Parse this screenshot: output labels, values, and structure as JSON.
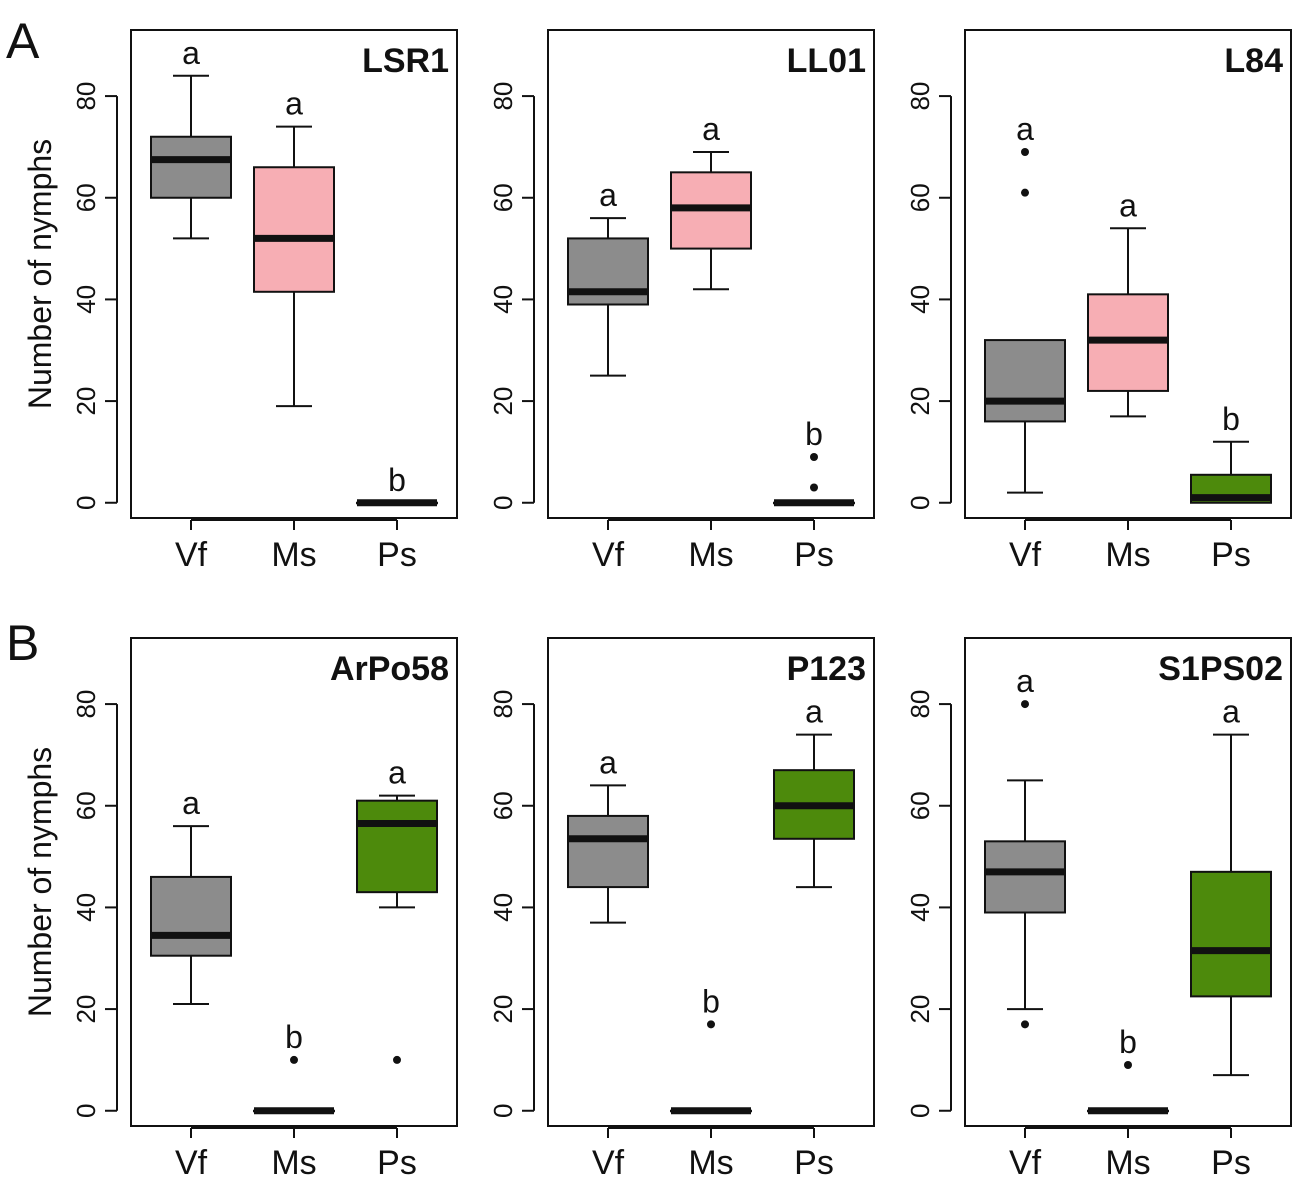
{
  "figure": {
    "panel_labels": [
      "A",
      "B"
    ],
    "y_axis_label": "Number of nymphs"
  },
  "colors": {
    "Vf": "#8c8c8c",
    "Ms": "#f7aeb4",
    "Ps": "#4d8a0c",
    "median": "#111111"
  },
  "chart_data": [
    {
      "type": "boxplot",
      "title": "LSR1",
      "ylabel": "Number of nymphs",
      "ylim": [
        -3,
        93
      ],
      "yticks": [
        "0",
        "20",
        "40",
        "60",
        "80"
      ],
      "categories": [
        "Vf",
        "Ms",
        "Ps"
      ],
      "boxes": [
        {
          "group": "Vf",
          "min": 52,
          "q1": 60,
          "median": 67.5,
          "q3": 72,
          "max": 84,
          "outliers": [],
          "letter": "a"
        },
        {
          "group": "Ms",
          "min": 19,
          "q1": 41.5,
          "median": 52,
          "q3": 66,
          "max": 74,
          "outliers": [],
          "letter": "a"
        },
        {
          "group": "Ps",
          "min": 0,
          "q1": 0,
          "median": 0,
          "q3": 0,
          "max": 0,
          "outliers": [],
          "letter": "b"
        }
      ]
    },
    {
      "type": "boxplot",
      "title": "LL01",
      "ylabel": "",
      "ylim": [
        -3,
        93
      ],
      "yticks": [
        "0",
        "20",
        "40",
        "60",
        "80"
      ],
      "categories": [
        "Vf",
        "Ms",
        "Ps"
      ],
      "boxes": [
        {
          "group": "Vf",
          "min": 25,
          "q1": 39,
          "median": 41.5,
          "q3": 52,
          "max": 56,
          "outliers": [],
          "letter": "a"
        },
        {
          "group": "Ms",
          "min": 42,
          "q1": 50,
          "median": 58,
          "q3": 65,
          "max": 69,
          "outliers": [],
          "letter": "a"
        },
        {
          "group": "Ps",
          "min": 0,
          "q1": 0,
          "median": 0,
          "q3": 0,
          "max": 0,
          "outliers": [
            3,
            9
          ],
          "letter": "b"
        }
      ]
    },
    {
      "type": "boxplot",
      "title": "L84",
      "ylabel": "",
      "ylim": [
        -3,
        93
      ],
      "yticks": [
        "0",
        "20",
        "40",
        "60",
        "80"
      ],
      "categories": [
        "Vf",
        "Ms",
        "Ps"
      ],
      "boxes": [
        {
          "group": "Vf",
          "min": 2,
          "q1": 16,
          "median": 20,
          "q3": 32,
          "max": 32,
          "outliers": [
            61,
            69
          ],
          "letter": "a"
        },
        {
          "group": "Ms",
          "min": 17,
          "q1": 22,
          "median": 32,
          "q3": 41,
          "max": 54,
          "outliers": [],
          "letter": "a"
        },
        {
          "group": "Ps",
          "min": 0,
          "q1": 0,
          "median": 1,
          "q3": 5.5,
          "max": 12,
          "outliers": [],
          "letter": "b"
        }
      ]
    },
    {
      "type": "boxplot",
      "title": "ArPo58",
      "ylabel": "Number of nymphs",
      "ylim": [
        -3,
        93
      ],
      "yticks": [
        "0",
        "20",
        "40",
        "60",
        "80"
      ],
      "categories": [
        "Vf",
        "Ms",
        "Ps"
      ],
      "boxes": [
        {
          "group": "Vf",
          "min": 21,
          "q1": 30.5,
          "median": 34.5,
          "q3": 46,
          "max": 56,
          "outliers": [],
          "letter": "a"
        },
        {
          "group": "Ms",
          "min": 0,
          "q1": 0,
          "median": 0,
          "q3": 0,
          "max": 0,
          "outliers": [
            10
          ],
          "letter": "b"
        },
        {
          "group": "Ps",
          "min": 40,
          "q1": 43,
          "median": 56.5,
          "q3": 61,
          "max": 62,
          "outliers": [
            10
          ],
          "letter": "a"
        }
      ]
    },
    {
      "type": "boxplot",
      "title": "P123",
      "ylabel": "",
      "ylim": [
        -3,
        93
      ],
      "yticks": [
        "0",
        "20",
        "40",
        "60",
        "80"
      ],
      "categories": [
        "Vf",
        "Ms",
        "Ps"
      ],
      "boxes": [
        {
          "group": "Vf",
          "min": 37,
          "q1": 44,
          "median": 53.5,
          "q3": 58,
          "max": 64,
          "outliers": [],
          "letter": "a"
        },
        {
          "group": "Ms",
          "min": 0,
          "q1": 0,
          "median": 0,
          "q3": 0,
          "max": 0,
          "outliers": [
            17
          ],
          "letter": "b"
        },
        {
          "group": "Ps",
          "min": 44,
          "q1": 53.5,
          "median": 60,
          "q3": 67,
          "max": 74,
          "outliers": [],
          "letter": "a"
        }
      ]
    },
    {
      "type": "boxplot",
      "title": "S1PS02",
      "ylabel": "",
      "ylim": [
        -3,
        93
      ],
      "yticks": [
        "0",
        "20",
        "40",
        "60",
        "80"
      ],
      "categories": [
        "Vf",
        "Ms",
        "Ps"
      ],
      "boxes": [
        {
          "group": "Vf",
          "min": 20,
          "q1": 39,
          "median": 47,
          "q3": 53,
          "max": 65,
          "outliers": [
            17,
            80
          ],
          "letter": "a"
        },
        {
          "group": "Ms",
          "min": 0,
          "q1": 0,
          "median": 0,
          "q3": 0,
          "max": 0,
          "outliers": [
            9
          ],
          "letter": "b"
        },
        {
          "group": "Ps",
          "min": 7,
          "q1": 22.5,
          "median": 31.5,
          "q3": 47,
          "max": 74,
          "outliers": [],
          "letter": "a"
        }
      ]
    }
  ]
}
